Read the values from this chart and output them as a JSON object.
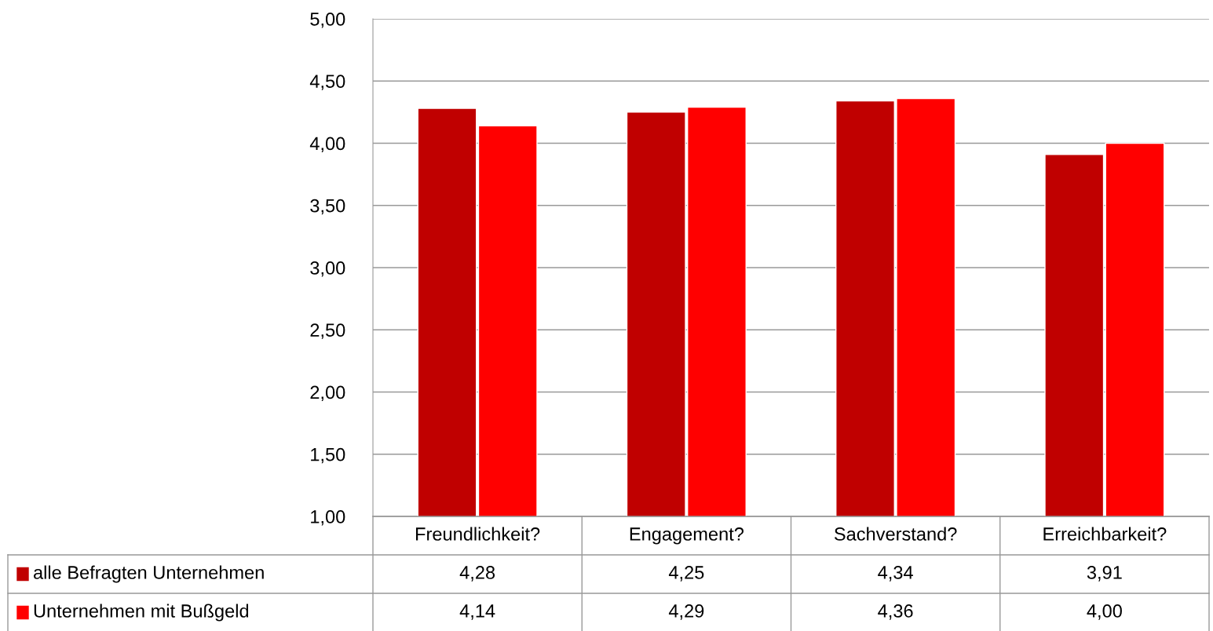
{
  "chart_data": {
    "type": "bar",
    "categories": [
      "Freundlichkeit?",
      "Engagement?",
      "Sachverstand?",
      "Erreichbarkeit?"
    ],
    "series": [
      {
        "name": "alle Befragten Unternehmen",
        "color": "#c00000",
        "values": [
          4.28,
          4.25,
          4.34,
          3.91
        ],
        "value_labels": [
          "4,28",
          "4,25",
          "4,34",
          "3,91"
        ]
      },
      {
        "name": "Unternehmen mit Bußgeld",
        "color": "#ff0000",
        "values": [
          4.14,
          4.29,
          4.36,
          4.0
        ],
        "value_labels": [
          "4,14",
          "4,29",
          "4,36",
          "4,00"
        ]
      }
    ],
    "ylim": [
      1,
      5
    ],
    "yticks": [
      {
        "value": 1,
        "label": "1,00"
      },
      {
        "value": 1.5,
        "label": "1,50"
      },
      {
        "value": 2,
        "label": "2,00"
      },
      {
        "value": 2.5,
        "label": "2,50"
      },
      {
        "value": 3,
        "label": "3,00"
      },
      {
        "value": 3.5,
        "label": "3,50"
      },
      {
        "value": 4,
        "label": "4,00"
      },
      {
        "value": 4.5,
        "label": "4,50"
      },
      {
        "value": 5,
        "label": "5,00"
      }
    ],
    "grid": "y",
    "legend": "bottom",
    "data_labels": true
  }
}
